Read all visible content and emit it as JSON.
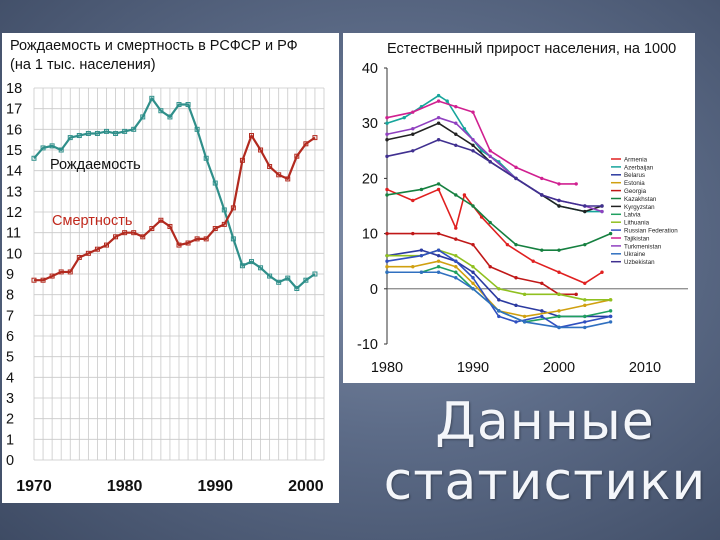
{
  "caption": [
    "Данные",
    "статистики"
  ],
  "chart_data": [
    {
      "type": "line",
      "title": "Рождаемость и смертность в РСФСР и РФ",
      "subtitle": "(на 1 тыс. населения)",
      "xlabel": "",
      "ylabel": "",
      "xlim": [
        1970,
        2002
      ],
      "ylim": [
        0,
        18
      ],
      "x_ticks": [
        1970,
        1980,
        1990,
        2000
      ],
      "y_ticks": [
        0,
        1,
        2,
        3,
        4,
        5,
        6,
        7,
        8,
        9,
        10,
        11,
        12,
        13,
        14,
        15,
        16,
        17,
        18
      ],
      "grid": true,
      "series": [
        {
          "name": "Рождаемость",
          "color": "#2f8f8a",
          "x": [
            1970,
            1971,
            1972,
            1973,
            1974,
            1975,
            1976,
            1977,
            1978,
            1979,
            1980,
            1981,
            1982,
            1983,
            1984,
            1985,
            1986,
            1987,
            1988,
            1989,
            1990,
            1991,
            1992,
            1993,
            1994,
            1995,
            1996,
            1997,
            1998,
            1999,
            2000,
            2001
          ],
          "y": [
            14.6,
            15.1,
            15.2,
            15.0,
            15.6,
            15.7,
            15.8,
            15.8,
            15.9,
            15.8,
            15.9,
            16.0,
            16.6,
            17.5,
            16.9,
            16.6,
            17.2,
            17.2,
            16.0,
            14.6,
            13.4,
            12.1,
            10.7,
            9.4,
            9.6,
            9.3,
            8.9,
            8.6,
            8.8,
            8.3,
            8.7,
            9.0
          ]
        },
        {
          "name": "Смертность",
          "color": "#b22a1f",
          "x": [
            1970,
            1971,
            1972,
            1973,
            1974,
            1975,
            1976,
            1977,
            1978,
            1979,
            1980,
            1981,
            1982,
            1983,
            1984,
            1985,
            1986,
            1987,
            1988,
            1989,
            1990,
            1991,
            1992,
            1993,
            1994,
            1995,
            1996,
            1997,
            1998,
            1999,
            2000,
            2001
          ],
          "y": [
            8.7,
            8.7,
            8.9,
            9.1,
            9.1,
            9.8,
            10.0,
            10.2,
            10.4,
            10.8,
            11.0,
            11.0,
            10.8,
            11.2,
            11.6,
            11.3,
            10.4,
            10.5,
            10.7,
            10.7,
            11.2,
            11.4,
            12.2,
            14.5,
            15.7,
            15.0,
            14.2,
            13.8,
            13.6,
            14.7,
            15.3,
            15.6
          ]
        }
      ]
    },
    {
      "type": "line",
      "title": "Естественный прирост населения, на 1000",
      "xlabel": "",
      "ylabel": "",
      "xlim": [
        1980,
        2015
      ],
      "ylim": [
        -10,
        40
      ],
      "x_ticks": [
        1980,
        1990,
        2000,
        2010
      ],
      "y_ticks": [
        -10,
        0,
        10,
        20,
        30,
        40
      ],
      "grid": false,
      "legend_position": "right",
      "series": [
        {
          "name": "Armenia",
          "color": "#e02020",
          "x": [
            1980,
            1983,
            1986,
            1988,
            1989,
            1991,
            1994,
            1997,
            2000,
            2003,
            2005
          ],
          "y": [
            18,
            16,
            18,
            11,
            17,
            13,
            8,
            5,
            3,
            1,
            3
          ]
        },
        {
          "name": "Azerbaijan",
          "color": "#16a59b",
          "x": [
            1980,
            1982,
            1984,
            1986,
            1987,
            1989,
            1991,
            1993,
            1995,
            1998,
            2000,
            2003,
            2005
          ],
          "y": [
            30,
            31,
            33,
            35,
            34,
            29,
            25,
            23,
            20,
            17,
            15,
            14,
            14
          ]
        },
        {
          "name": "Belarus",
          "color": "#2b3aa0",
          "x": [
            1980,
            1984,
            1986,
            1988,
            1990,
            1993,
            1995,
            1998,
            2000,
            2003,
            2006
          ],
          "y": [
            6,
            7,
            6,
            5,
            3,
            -2,
            -3,
            -4,
            -5,
            -5,
            -5
          ]
        },
        {
          "name": "Estonia",
          "color": "#d0a010",
          "x": [
            1980,
            1983,
            1986,
            1988,
            1990,
            1993,
            1996,
            2000,
            2003,
            2006
          ],
          "y": [
            4,
            4,
            5,
            4,
            1,
            -4,
            -5,
            -4,
            -3,
            -2
          ]
        },
        {
          "name": "Georgia",
          "color": "#c01818",
          "x": [
            1980,
            1983,
            1986,
            1988,
            1990,
            1992,
            1995,
            1998,
            2000,
            2002
          ],
          "y": [
            10,
            10,
            10,
            9,
            8,
            4,
            2,
            1,
            -1,
            -1
          ]
        },
        {
          "name": "Kazakhstan",
          "color": "#168040",
          "x": [
            1980,
            1984,
            1986,
            1988,
            1990,
            1992,
            1995,
            1998,
            2000,
            2003,
            2006
          ],
          "y": [
            17,
            18,
            19,
            17,
            15,
            12,
            8,
            7,
            7,
            8,
            10
          ]
        },
        {
          "name": "Kyrgyzstan",
          "color": "#222222",
          "x": [
            1980,
            1983,
            1986,
            1988,
            1990,
            1992,
            1995,
            1998,
            2000,
            2003,
            2005
          ],
          "y": [
            27,
            28,
            30,
            28,
            26,
            23,
            20,
            17,
            15,
            14,
            15
          ]
        },
        {
          "name": "Latvia",
          "color": "#20a060",
          "x": [
            1980,
            1984,
            1986,
            1988,
            1990,
            1993,
            1996,
            2000,
            2003,
            2006
          ],
          "y": [
            3,
            3,
            4,
            3,
            0,
            -4,
            -6,
            -5,
            -5,
            -4
          ]
        },
        {
          "name": "Lithuania",
          "color": "#90c020",
          "x": [
            1980,
            1984,
            1986,
            1988,
            1990,
            1993,
            1996,
            2000,
            2003,
            2006
          ],
          "y": [
            6,
            6,
            7,
            6,
            4,
            0,
            -1,
            -1,
            -2,
            -2
          ]
        },
        {
          "name": "Russian Federation",
          "color": "#3050c0",
          "x": [
            1980,
            1984,
            1986,
            1988,
            1990,
            1993,
            1995,
            1998,
            2000,
            2003,
            2006
          ],
          "y": [
            5,
            6,
            7,
            5,
            2,
            -5,
            -6,
            -5,
            -7,
            -6,
            -5
          ]
        },
        {
          "name": "Tajikistan",
          "color": "#d02090",
          "x": [
            1980,
            1983,
            1986,
            1988,
            1990,
            1992,
            1995,
            1998,
            2000,
            2002
          ],
          "y": [
            31,
            32,
            34,
            33,
            32,
            25,
            22,
            20,
            19,
            19
          ]
        },
        {
          "name": "Turkmenistan",
          "color": "#9040c0",
          "x": [
            1980,
            1983,
            1986,
            1988,
            1990,
            1992,
            1995,
            1998,
            2000,
            2003,
            2005
          ],
          "y": [
            28,
            29,
            31,
            30,
            27,
            24,
            20,
            17,
            16,
            15,
            14
          ]
        },
        {
          "name": "Ukraine",
          "color": "#3070c0",
          "x": [
            1980,
            1984,
            1986,
            1988,
            1990,
            1993,
            1996,
            2000,
            2003,
            2006
          ],
          "y": [
            3,
            3,
            3,
            2,
            0,
            -4,
            -6,
            -7,
            -7,
            -6
          ]
        },
        {
          "name": "Uzbekistan",
          "color": "#403090",
          "x": [
            1980,
            1983,
            1986,
            1988,
            1990,
            1992,
            1995,
            1998,
            2000,
            2003,
            2005
          ],
          "y": [
            24,
            25,
            27,
            26,
            25,
            23,
            20,
            17,
            16,
            15,
            15
          ]
        }
      ]
    }
  ]
}
